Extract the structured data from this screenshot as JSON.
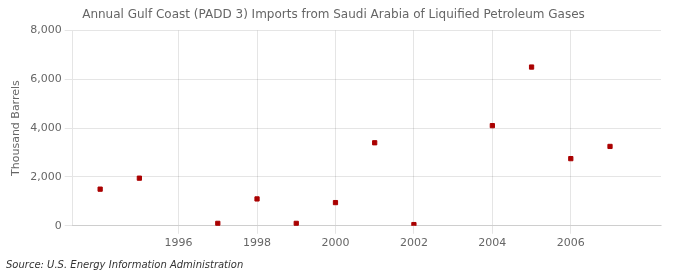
{
  "chart_data": {
    "type": "scatter",
    "title": "Annual Gulf Coast (PADD 3) Imports from Saudi Arabia of Liquified Petroleum Gases",
    "ylabel": "Thousand Barrels",
    "source": "Source: U.S. Energy Information Administration",
    "x": [
      1994,
      1995,
      1997,
      1998,
      1999,
      2000,
      2001,
      2002,
      2004,
      2005,
      2006,
      2007
    ],
    "values": [
      1500,
      1950,
      100,
      1100,
      100,
      950,
      3400,
      50,
      4100,
      6500,
      2750,
      3250
    ],
    "color": "#aa0000",
    "marker": "square",
    "xlim": [
      1993.3,
      2008.3
    ],
    "xticks": [
      1996,
      1998,
      2000,
      2002,
      2004,
      2006
    ],
    "ylim": [
      0,
      8000
    ],
    "yticks": [
      0,
      {
        "value": 2000,
        "label": "2,000"
      },
      {
        "value": 4000,
        "label": "4,000"
      },
      {
        "value": 6000,
        "label": "6,000"
      },
      {
        "value": 8000,
        "label": "8,000"
      }
    ],
    "grid": true
  }
}
